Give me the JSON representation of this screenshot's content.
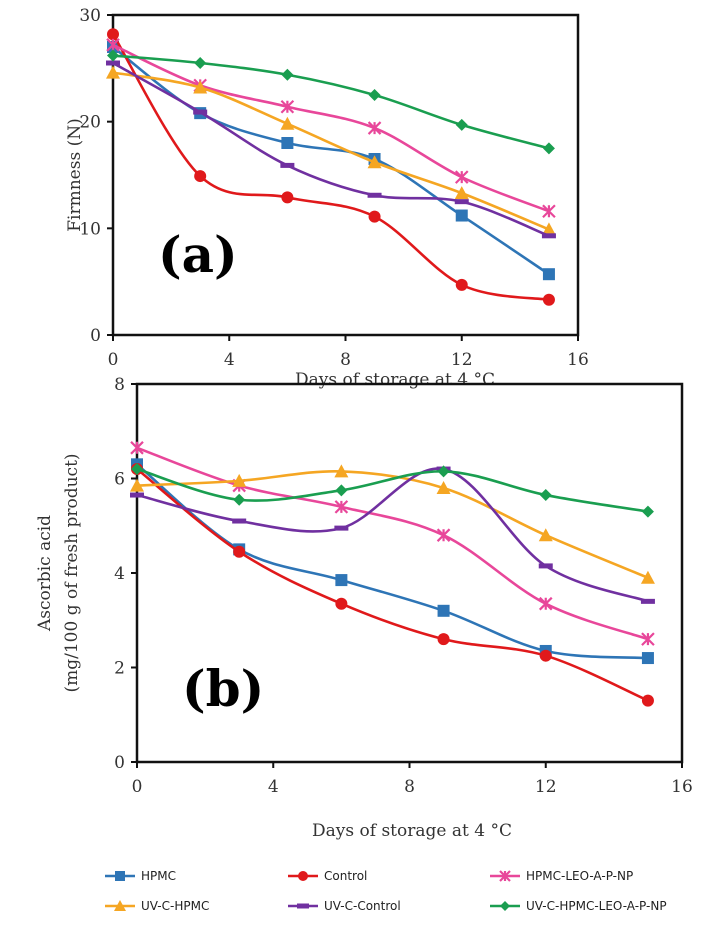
{
  "legend": [
    {
      "name": "HPMC",
      "color": "#2e75b6",
      "marker": "square"
    },
    {
      "name": "Control",
      "color": "#e0191b",
      "marker": "circle"
    },
    {
      "name": "HPMC-LEO-A-P-NP",
      "color": "#e8479a",
      "marker": "x"
    },
    {
      "name": "UV-C-HPMC",
      "color": "#f5a623",
      "marker": "triangle"
    },
    {
      "name": "UV-C-Control",
      "color": "#7030a0",
      "marker": "dash"
    },
    {
      "name": "UV-C-HPMC-LEO-A-P-NP",
      "color": "#1a9e50",
      "marker": "diamond"
    }
  ],
  "chart_data": [
    {
      "type": "line",
      "panel_label": "(a)",
      "xlabel": "Days of storage at 4 °C",
      "ylabel": "Firmness (N)",
      "xlim": [
        0,
        16
      ],
      "ylim": [
        0,
        30
      ],
      "xticks": [
        0,
        4,
        8,
        12,
        16
      ],
      "yticks": [
        0,
        10,
        20,
        30
      ],
      "x": [
        0,
        3,
        6,
        9,
        12,
        15
      ],
      "series": [
        {
          "name": "HPMC",
          "values": [
            27,
            20.8,
            18,
            16.5,
            11.2,
            5.7
          ]
        },
        {
          "name": "Control",
          "values": [
            28.2,
            14.9,
            12.9,
            11.1,
            4.7,
            3.3
          ]
        },
        {
          "name": "HPMC-LEO-A-P-NP",
          "values": [
            27.2,
            23.4,
            21.4,
            19.4,
            14.8,
            11.6
          ]
        },
        {
          "name": "UV-C-HPMC",
          "values": [
            24.6,
            23.2,
            19.8,
            16.2,
            13.3,
            9.9
          ]
        },
        {
          "name": "UV-C-Control",
          "values": [
            25.5,
            20.9,
            15.9,
            13.1,
            12.5,
            9.3
          ]
        },
        {
          "name": "UV-C-HPMC-LEO-A-P-NP",
          "values": [
            26.2,
            25.5,
            24.4,
            22.5,
            19.7,
            17.5
          ]
        }
      ]
    },
    {
      "type": "line",
      "panel_label": "(b)",
      "xlabel": "Days of storage at 4 °C",
      "ylabel": [
        "Ascorbic acid",
        "(mg/100 g of fresh product)"
      ],
      "xlim": [
        0,
        16
      ],
      "ylim": [
        0,
        8
      ],
      "xticks": [
        0,
        4,
        8,
        12,
        16
      ],
      "yticks": [
        0,
        2,
        4,
        6,
        8
      ],
      "x": [
        0,
        3,
        6,
        9,
        12,
        15
      ],
      "series": [
        {
          "name": "HPMC",
          "values": [
            6.3,
            4.5,
            3.85,
            3.2,
            2.35,
            2.2
          ]
        },
        {
          "name": "Control",
          "values": [
            6.2,
            4.45,
            3.35,
            2.6,
            2.25,
            1.3
          ]
        },
        {
          "name": "HPMC-LEO-A-P-NP",
          "values": [
            6.65,
            5.85,
            5.4,
            4.8,
            3.35,
            2.6
          ]
        },
        {
          "name": "UV-C-HPMC",
          "values": [
            5.85,
            5.95,
            6.15,
            5.8,
            4.8,
            3.9
          ]
        },
        {
          "name": "UV-C-Control",
          "values": [
            5.65,
            5.1,
            4.95,
            6.2,
            4.15,
            3.4
          ]
        },
        {
          "name": "UV-C-HPMC-LEO-A-P-NP",
          "values": [
            6.2,
            5.55,
            5.75,
            6.15,
            5.65,
            5.3
          ]
        }
      ]
    }
  ]
}
